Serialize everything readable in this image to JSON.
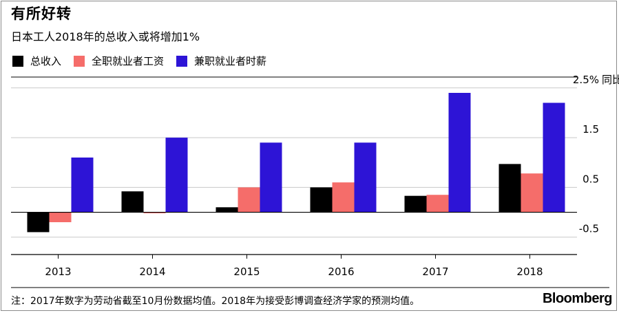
{
  "title": "有所好转",
  "subtitle": "日本工人2018年的总收入或将增加1%",
  "legend": [
    {
      "label": "总收入",
      "color": "#000000"
    },
    {
      "label": "全职就业者工资",
      "color": "#f56d6a"
    },
    {
      "label": "兼职就业者时薪",
      "color": "#2d14d6"
    }
  ],
  "footnote": "注：2017年数字为劳动省截至10月份数据均值。2018年为接受彭博调查经济学家的预测均值。",
  "logo": "Bloomberg",
  "chart_data": {
    "type": "bar",
    "categories": [
      "2013",
      "2014",
      "2015",
      "2016",
      "2017",
      "2018"
    ],
    "series": [
      {
        "name": "总收入",
        "color": "#000000",
        "values": [
          -0.4,
          0.42,
          0.1,
          0.5,
          0.33,
          0.97
        ]
      },
      {
        "name": "全职就业者工资",
        "color": "#f56d6a",
        "values": [
          -0.2,
          -0.02,
          0.5,
          0.6,
          0.35,
          0.78
        ]
      },
      {
        "name": "兼职就业者时薪",
        "color": "#2d14d6",
        "values": [
          1.1,
          1.5,
          1.4,
          1.4,
          2.4,
          2.2
        ]
      }
    ],
    "ylim": [
      -0.85,
      2.4
    ],
    "ytick_values": [
      -0.5,
      0.5,
      1.5,
      2.5
    ],
    "ytick_labels": [
      "-0.5",
      "0.5",
      "1.5",
      "2.5%"
    ],
    "yunit": "同比",
    "grid": true
  }
}
